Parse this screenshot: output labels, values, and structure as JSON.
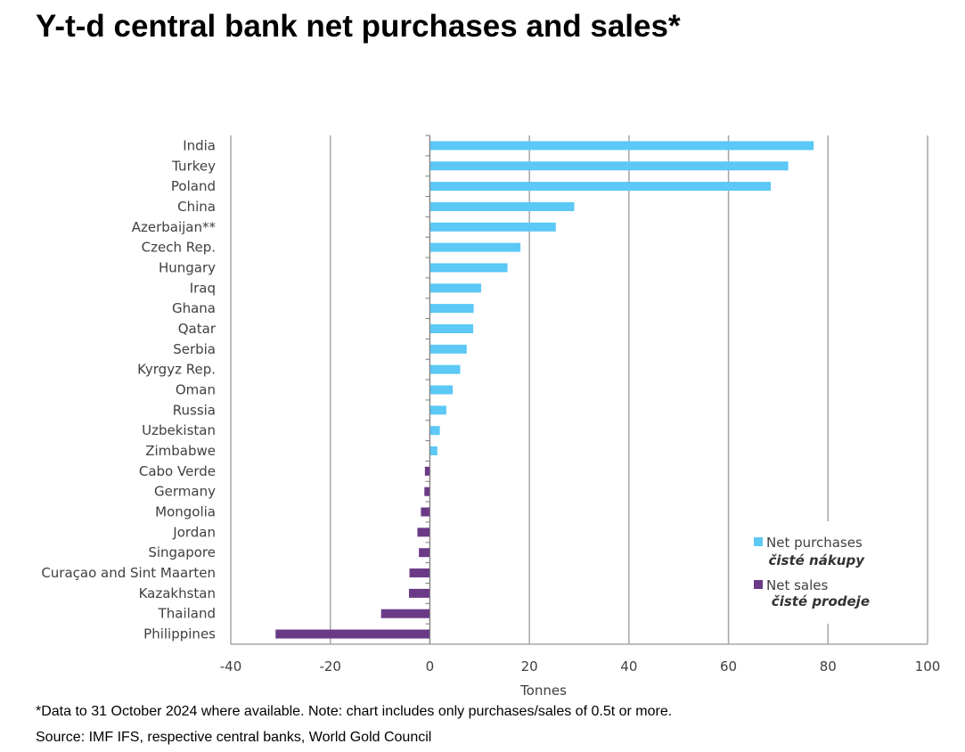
{
  "title": "Y-t-d central bank net purchases and sales*",
  "footnote": "*Data to 31 October 2024 where available. Note: chart includes only purchases/sales of 0.5t or more.",
  "source": "Source: IMF IFS, respective central banks, World Gold Council",
  "colors": {
    "purchases": "#5BC8F5",
    "sales": "#6B3A87",
    "grid": "#a6a6a6"
  },
  "chart_data": {
    "type": "bar",
    "orientation": "horizontal",
    "categories": [
      "India",
      "Turkey",
      "Poland",
      "China",
      "Azerbaijan**",
      "Czech Rep.",
      "Hungary",
      "Iraq",
      "Ghana",
      "Qatar",
      "Serbia",
      "Kyrgyz Rep.",
      "Oman",
      "Russia",
      "Uzbekistan",
      "Zimbabwe",
      "Cabo Verde",
      "Germany",
      "Mongolia",
      "Jordan",
      "Singapore",
      "Curaçao and Sint Maarten",
      "Kazakhstan",
      "Thailand",
      "Philippines"
    ],
    "values": [
      77.1,
      72.0,
      68.5,
      29.0,
      25.3,
      18.2,
      15.6,
      10.3,
      8.8,
      8.7,
      7.4,
      6.1,
      4.6,
      3.3,
      2.0,
      1.5,
      -1.0,
      -1.1,
      -1.8,
      -2.5,
      -2.2,
      -4.1,
      -4.2,
      -9.8,
      -31.0
    ],
    "xlabel": "Tonnes",
    "xlim": [
      -40,
      100
    ],
    "xticks": [
      -40,
      -20,
      0,
      20,
      40,
      60,
      80,
      100
    ],
    "grid": true,
    "legend_position": "bottom-right",
    "legend": [
      {
        "name": "Net purchases",
        "note": "čisté nákupy",
        "color": "#5BC8F5"
      },
      {
        "name": "Net sales",
        "note": "čisté prodeje",
        "color": "#6B3A87"
      }
    ]
  }
}
